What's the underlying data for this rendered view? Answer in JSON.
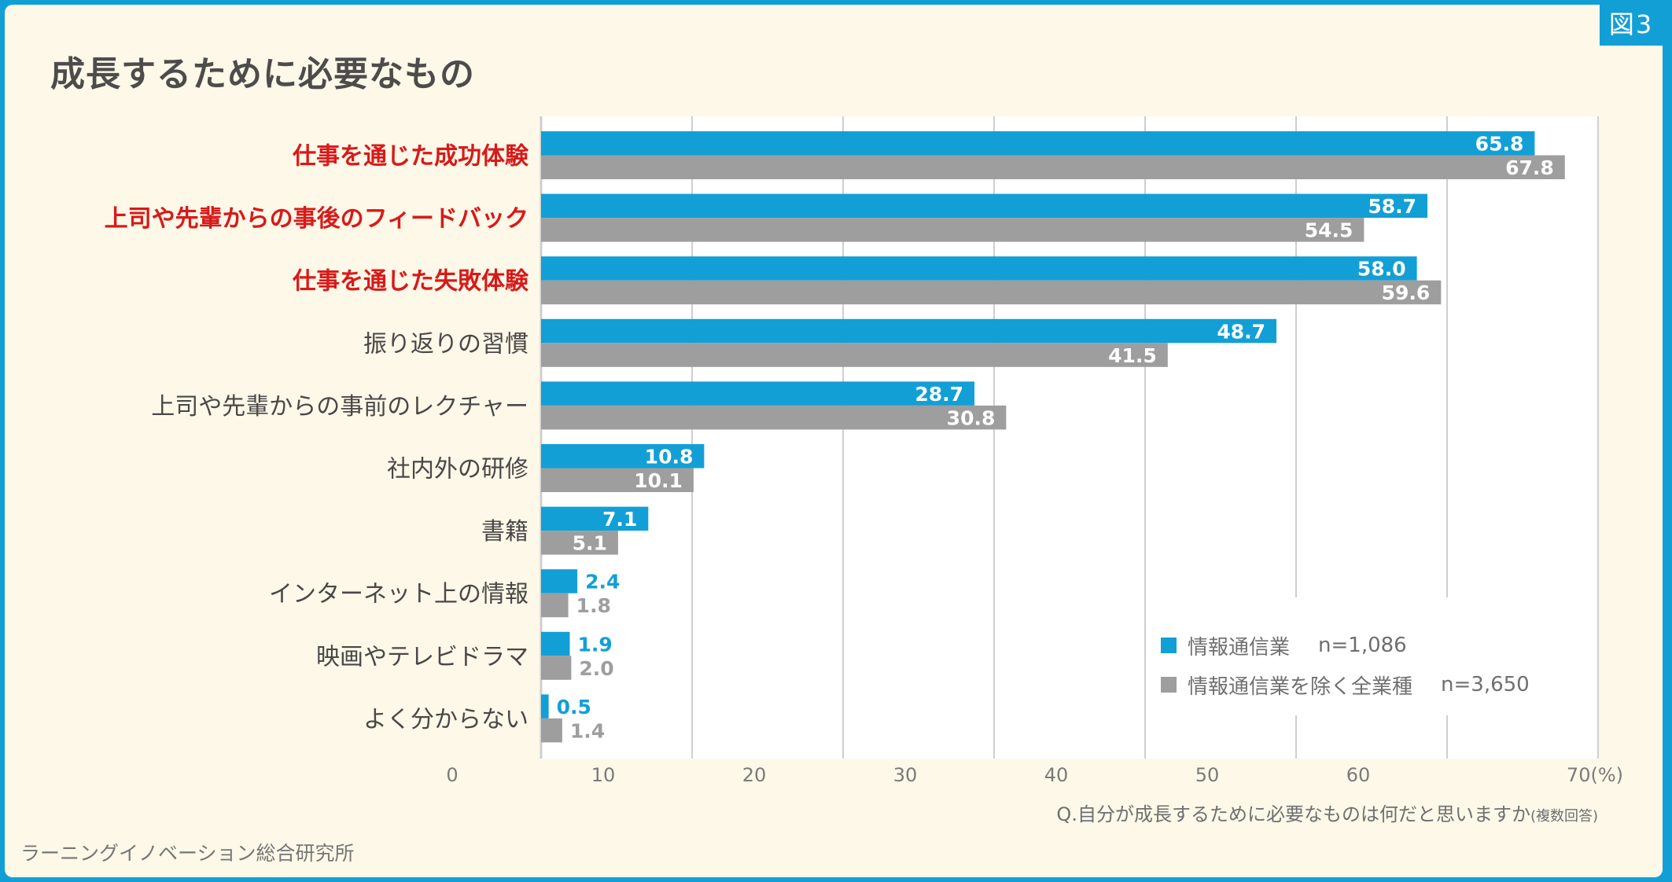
{
  "figure_badge": "図3",
  "title": "成長するために必要なもの",
  "legend": [
    {
      "label": "情報通信業",
      "n": "n=1,086",
      "color": "#129fd6"
    },
    {
      "label": "情報通信業を除く全業種",
      "n": "n=3,650",
      "color": "#9e9e9e"
    }
  ],
  "question": "Q.自分が成長するために必要なものは何だと思いますか",
  "question_note": "(複数回答)",
  "source": "ラーニングイノベーション総合研究所",
  "chart_data": {
    "type": "bar",
    "orientation": "horizontal",
    "title": "成長するために必要なもの",
    "xlabel": "",
    "ylabel": "",
    "x_unit": "(%)",
    "xlim": [
      0,
      70
    ],
    "xticks": [
      0,
      10,
      20,
      30,
      40,
      50,
      60,
      70
    ],
    "xtick_labels": [
      "0",
      "10",
      "20",
      "30",
      "40",
      "50",
      "60",
      "70(%)"
    ],
    "grid": true,
    "legend_position": "bottom-right",
    "categories": [
      "仕事を通じた成功体験",
      "上司や先輩からの事後のフィードバック",
      "仕事を通じた失敗体験",
      "振り返りの習慣",
      "上司や先輩からの事前のレクチャー",
      "社内外の研修",
      "書籍",
      "インターネット上の情報",
      "映画やテレビドラマ",
      "よく分からない"
    ],
    "highlighted_categories": [
      0,
      1,
      2
    ],
    "highlight_color": "#d71a1a",
    "series": [
      {
        "name": "情報通信業",
        "n": "n=1,086",
        "color": "#129fd6",
        "values": [
          65.8,
          58.7,
          58.0,
          48.7,
          28.7,
          10.8,
          7.1,
          2.4,
          1.9,
          0.5
        ]
      },
      {
        "name": "情報通信業を除く全業種",
        "n": "n=3,650",
        "color": "#9e9e9e",
        "values": [
          67.8,
          54.5,
          59.6,
          41.5,
          30.8,
          10.1,
          5.1,
          1.8,
          2.0,
          1.4
        ]
      }
    ]
  }
}
